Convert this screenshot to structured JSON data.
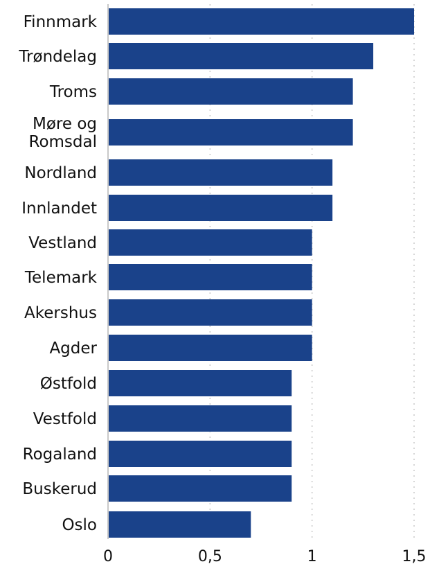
{
  "chart_data": {
    "type": "bar",
    "orientation": "horizontal",
    "categories": [
      "Finnmark",
      "Trøndelag",
      "Troms",
      "Møre og Romsdal",
      "Nordland",
      "Innlandet",
      "Vestland",
      "Telemark",
      "Akershus",
      "Agder",
      "Østfold",
      "Vestfold",
      "Rogaland",
      "Buskerud",
      "Oslo"
    ],
    "values": [
      1.5,
      1.3,
      1.2,
      1.2,
      1.1,
      1.1,
      1.0,
      1.0,
      1.0,
      1.0,
      0.9,
      0.9,
      0.9,
      0.9,
      0.7
    ],
    "xlim": [
      0,
      1.5
    ],
    "xticks": [
      0,
      0.5,
      1,
      1.5
    ],
    "xtick_labels": [
      "0",
      "0,5",
      "1",
      "1,5"
    ],
    "title": "",
    "xlabel": "",
    "ylabel": "",
    "grid": "vertical dotted",
    "legend": "none",
    "bar_color": "#1a428a",
    "grid_color": "#c8c8c8",
    "text_color": "#111111"
  }
}
